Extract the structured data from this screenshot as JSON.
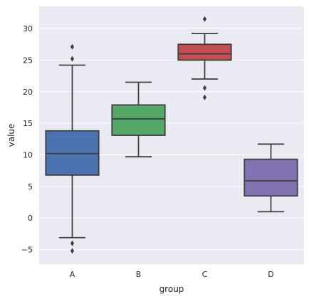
{
  "chart_data": {
    "type": "box",
    "title": "",
    "xlabel": "group",
    "ylabel": "value",
    "categories": [
      "A",
      "B",
      "C",
      "D"
    ],
    "ylim": [
      -7.3,
      33.5
    ],
    "yticks": [
      -5,
      0,
      5,
      10,
      15,
      20,
      25,
      30
    ],
    "ytick_labels": [
      "−5",
      "0",
      "5",
      "10",
      "15",
      "20",
      "25",
      "30"
    ],
    "grid": true,
    "boxes": [
      {
        "category": "A",
        "color": "#4c72b0",
        "q1": 6.8,
        "median": 10.2,
        "q3": 13.8,
        "whisker_low": -3.1,
        "whisker_high": 24.2,
        "outliers": [
          27.1,
          25.2,
          -4.0,
          -5.2
        ]
      },
      {
        "category": "B",
        "color": "#55a868",
        "q1": 13.1,
        "median": 15.7,
        "q3": 17.9,
        "whisker_low": 9.7,
        "whisker_high": 21.5,
        "outliers": []
      },
      {
        "category": "C",
        "color": "#c44e52",
        "q1": 25.0,
        "median": 26.0,
        "q3": 27.5,
        "whisker_low": 22.0,
        "whisker_high": 29.2,
        "outliers": [
          31.5,
          20.6,
          19.1
        ]
      },
      {
        "category": "D",
        "color": "#8172b2",
        "q1": 3.5,
        "median": 5.9,
        "q3": 9.3,
        "whisker_low": 1.0,
        "whisker_high": 11.7,
        "outliers": []
      }
    ],
    "colors": {
      "background": "#eaeaf2",
      "grid": "#ffffff",
      "line": "#3f3f3f"
    }
  }
}
